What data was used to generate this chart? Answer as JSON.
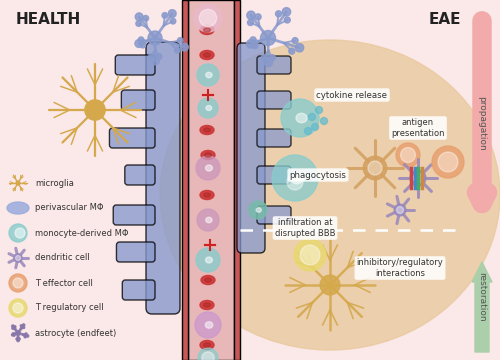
{
  "bg_color": "#fbe8e8",
  "title_health": "HEALTH",
  "title_eae": "EAE",
  "propagation_color": "#f2aaaa",
  "restoration_color": "#aacfaa",
  "vessel_fill": "#e8a8a8",
  "vessel_wall": "#c85858",
  "eae_bg_color": "#e8c89a",
  "eae_bg_alpha": 0.75,
  "pv_color": "#8899cc",
  "microglia_color": "#d4a84b",
  "monocyte_color": "#88cccc",
  "dendritic_color": "#9988bb",
  "teff_color": "#e8a070",
  "treg_color": "#e8d870",
  "astrocyte_color": "#8877aa",
  "rbc_color": "#cc3333",
  "lumen_pink": "#e8b8b8",
  "labels": {
    "cytokine_release": "cytokine release",
    "phagocytosis": "phagocytosis",
    "infiltration": "infiltration at\ndisrupted BBB",
    "antigen": "antigen\npresentation",
    "inhibitory": "inhibitory/regulatory\ninteractions",
    "propagation": "propagation",
    "restoration": "restoration"
  },
  "legend": [
    {
      "label": "microglia",
      "color": "#d4a84b",
      "type": "microglia"
    },
    {
      "label": "perivascular MΦ",
      "color": "#9aabdd",
      "type": "blob"
    },
    {
      "label": "monocyte-derived MΦ",
      "color": "#88cccc",
      "type": "circle_nuc"
    },
    {
      "label": "dendritic cell",
      "color": "#9988bb",
      "type": "spiky"
    },
    {
      "label": "T effector cell",
      "color": "#e8a070",
      "type": "circle_ring"
    },
    {
      "label": "T regulatory cell",
      "color": "#e8d870",
      "type": "circle_ring"
    },
    {
      "label": "astrocyte (endfeet)",
      "color": "#8877aa",
      "type": "astrocyte"
    }
  ]
}
